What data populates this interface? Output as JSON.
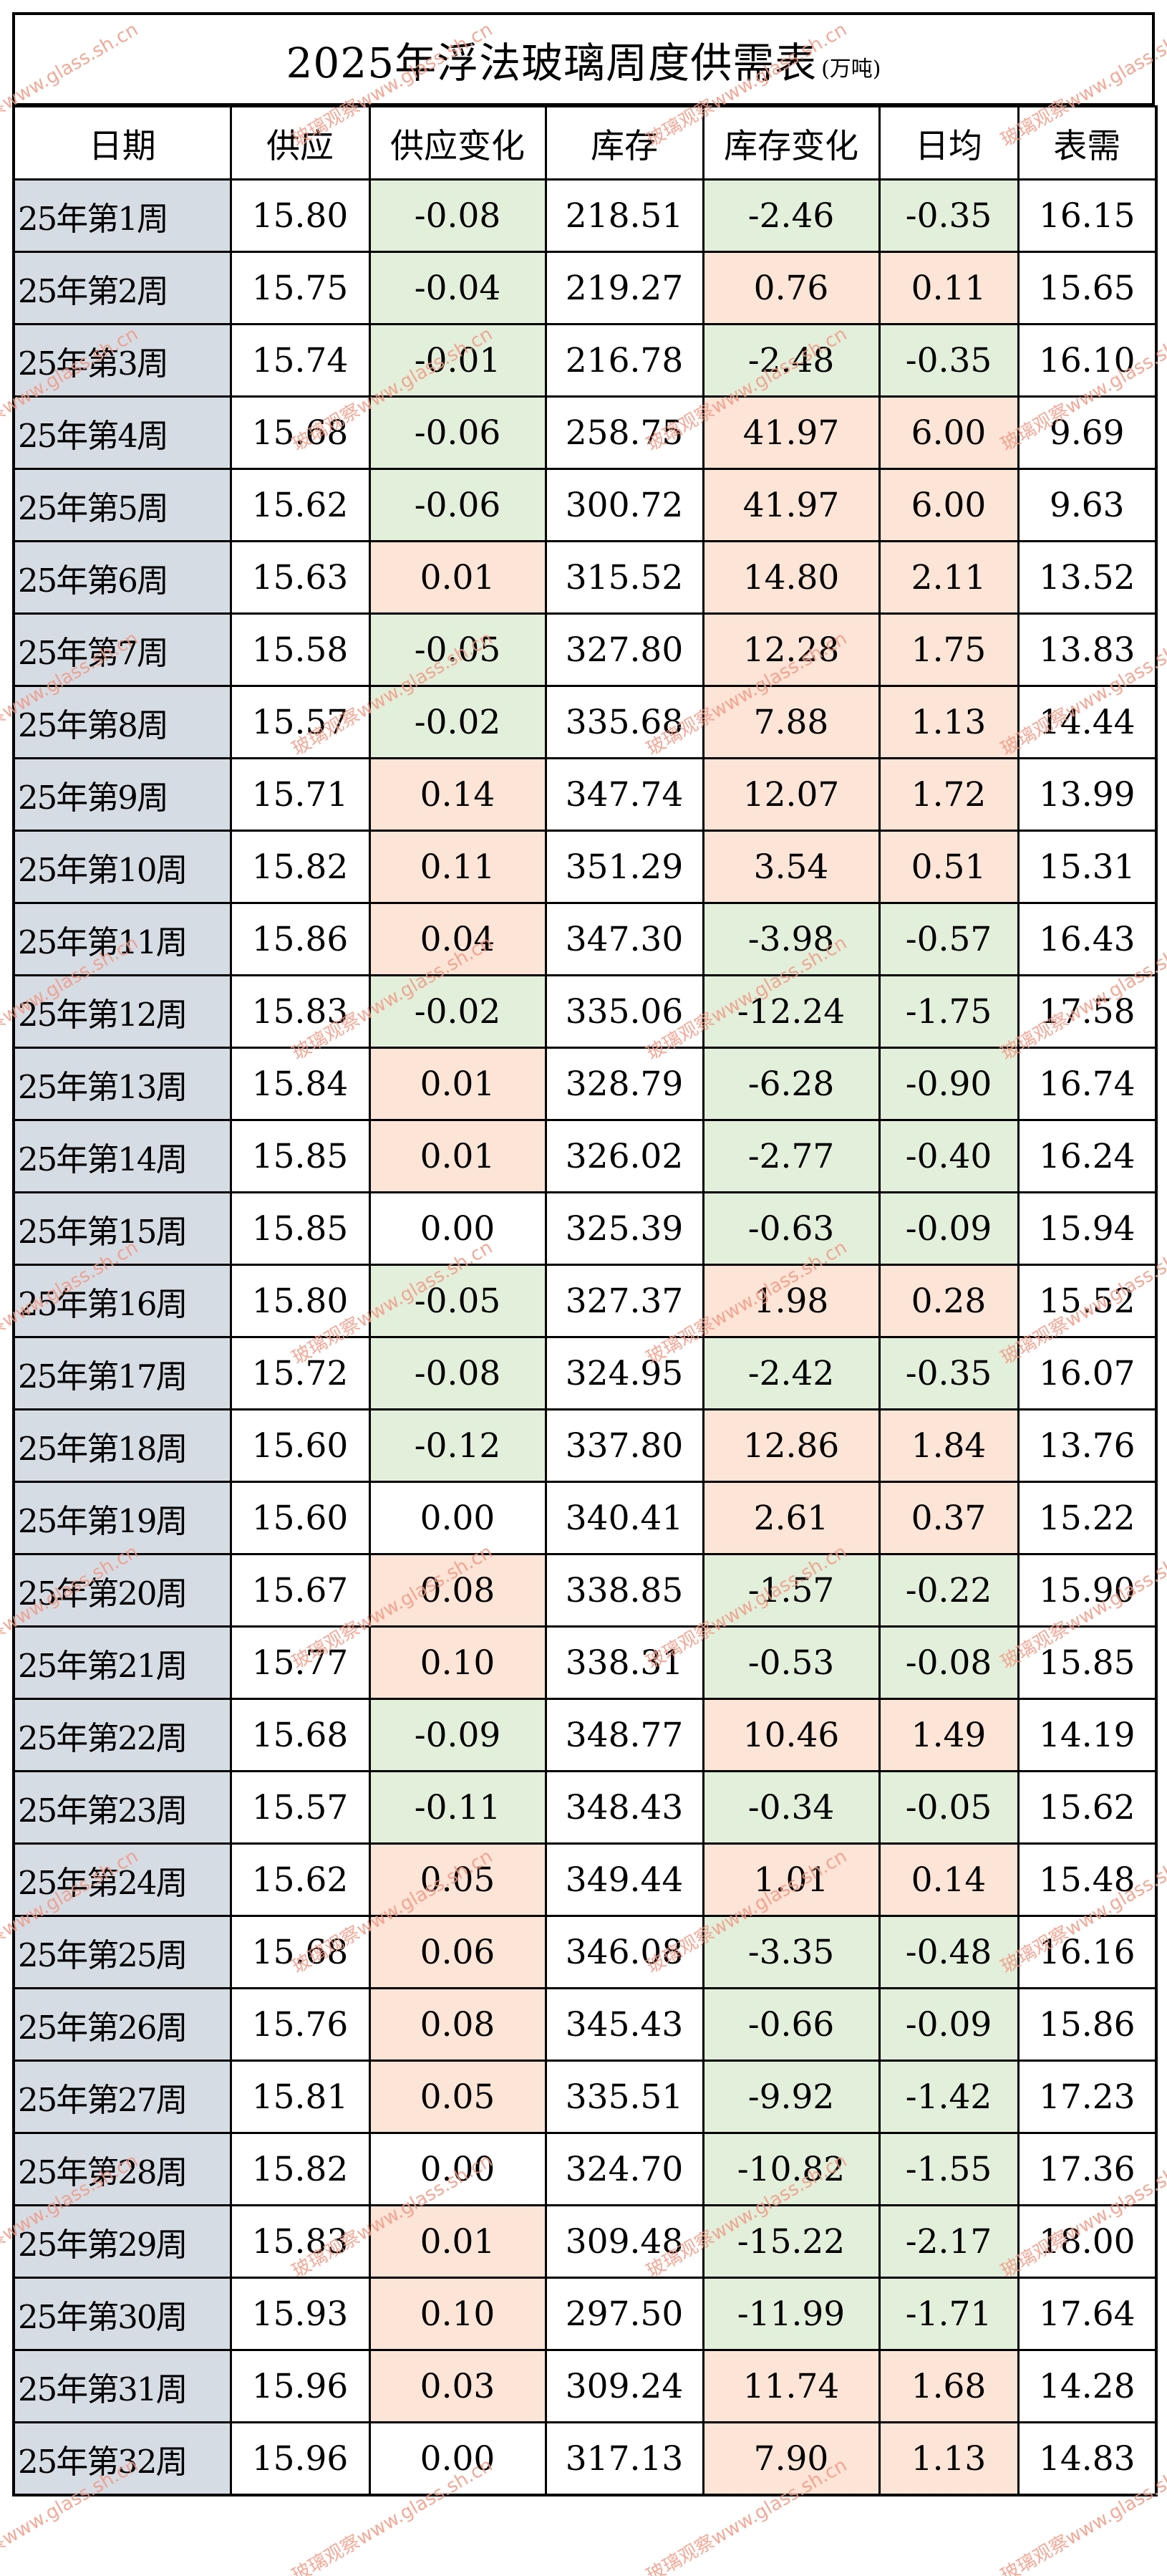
{
  "title": {
    "main": "2025年浮法玻璃周度供需表",
    "unit": "(万吨)"
  },
  "columns": [
    "日期",
    "供应",
    "供应变化",
    "库存",
    "库存变化",
    "日均",
    "表需"
  ],
  "colors": {
    "date_bg": "#d6dce4",
    "positive_bg": "#fce4d6",
    "negative_bg": "#e2efda",
    "border": "#000000",
    "watermark": "#f19a86"
  },
  "watermark_text": "玻璃观察www.glass.sh.cn",
  "rows": [
    {
      "date": "25年第1周",
      "supply": "15.80",
      "supply_change": "-0.08",
      "inventory": "218.51",
      "inventory_change": "-2.46",
      "daily": "-0.35",
      "demand": "16.15"
    },
    {
      "date": "25年第2周",
      "supply": "15.75",
      "supply_change": "-0.04",
      "inventory": "219.27",
      "inventory_change": "0.76",
      "daily": "0.11",
      "demand": "15.65"
    },
    {
      "date": "25年第3周",
      "supply": "15.74",
      "supply_change": "-0.01",
      "inventory": "216.78",
      "inventory_change": "-2.48",
      "daily": "-0.35",
      "demand": "16.10"
    },
    {
      "date": "25年第4周",
      "supply": "15.68",
      "supply_change": "-0.06",
      "inventory": "258.75",
      "inventory_change": "41.97",
      "daily": "6.00",
      "demand": "9.69"
    },
    {
      "date": "25年第5周",
      "supply": "15.62",
      "supply_change": "-0.06",
      "inventory": "300.72",
      "inventory_change": "41.97",
      "daily": "6.00",
      "demand": "9.63"
    },
    {
      "date": "25年第6周",
      "supply": "15.63",
      "supply_change": "0.01",
      "inventory": "315.52",
      "inventory_change": "14.80",
      "daily": "2.11",
      "demand": "13.52"
    },
    {
      "date": "25年第7周",
      "supply": "15.58",
      "supply_change": "-0.05",
      "inventory": "327.80",
      "inventory_change": "12.28",
      "daily": "1.75",
      "demand": "13.83"
    },
    {
      "date": "25年第8周",
      "supply": "15.57",
      "supply_change": "-0.02",
      "inventory": "335.68",
      "inventory_change": "7.88",
      "daily": "1.13",
      "demand": "14.44"
    },
    {
      "date": "25年第9周",
      "supply": "15.71",
      "supply_change": "0.14",
      "inventory": "347.74",
      "inventory_change": "12.07",
      "daily": "1.72",
      "demand": "13.99"
    },
    {
      "date": "25年第10周",
      "supply": "15.82",
      "supply_change": "0.11",
      "inventory": "351.29",
      "inventory_change": "3.54",
      "daily": "0.51",
      "demand": "15.31"
    },
    {
      "date": "25年第11周",
      "supply": "15.86",
      "supply_change": "0.04",
      "inventory": "347.30",
      "inventory_change": "-3.98",
      "daily": "-0.57",
      "demand": "16.43"
    },
    {
      "date": "25年第12周",
      "supply": "15.83",
      "supply_change": "-0.02",
      "inventory": "335.06",
      "inventory_change": "-12.24",
      "daily": "-1.75",
      "demand": "17.58"
    },
    {
      "date": "25年第13周",
      "supply": "15.84",
      "supply_change": "0.01",
      "inventory": "328.79",
      "inventory_change": "-6.28",
      "daily": "-0.90",
      "demand": "16.74"
    },
    {
      "date": "25年第14周",
      "supply": "15.85",
      "supply_change": "0.01",
      "inventory": "326.02",
      "inventory_change": "-2.77",
      "daily": "-0.40",
      "demand": "16.24"
    },
    {
      "date": "25年第15周",
      "supply": "15.85",
      "supply_change": "0.00",
      "inventory": "325.39",
      "inventory_change": "-0.63",
      "daily": "-0.09",
      "demand": "15.94"
    },
    {
      "date": "25年第16周",
      "supply": "15.80",
      "supply_change": "-0.05",
      "inventory": "327.37",
      "inventory_change": "1.98",
      "daily": "0.28",
      "demand": "15.52"
    },
    {
      "date": "25年第17周",
      "supply": "15.72",
      "supply_change": "-0.08",
      "inventory": "324.95",
      "inventory_change": "-2.42",
      "daily": "-0.35",
      "demand": "16.07"
    },
    {
      "date": "25年第18周",
      "supply": "15.60",
      "supply_change": "-0.12",
      "inventory": "337.80",
      "inventory_change": "12.86",
      "daily": "1.84",
      "demand": "13.76"
    },
    {
      "date": "25年第19周",
      "supply": "15.60",
      "supply_change": "0.00",
      "inventory": "340.41",
      "inventory_change": "2.61",
      "daily": "0.37",
      "demand": "15.22"
    },
    {
      "date": "25年第20周",
      "supply": "15.67",
      "supply_change": "0.08",
      "inventory": "338.85",
      "inventory_change": "-1.57",
      "daily": "-0.22",
      "demand": "15.90"
    },
    {
      "date": "25年第21周",
      "supply": "15.77",
      "supply_change": "0.10",
      "inventory": "338.31",
      "inventory_change": "-0.53",
      "daily": "-0.08",
      "demand": "15.85"
    },
    {
      "date": "25年第22周",
      "supply": "15.68",
      "supply_change": "-0.09",
      "inventory": "348.77",
      "inventory_change": "10.46",
      "daily": "1.49",
      "demand": "14.19"
    },
    {
      "date": "25年第23周",
      "supply": "15.57",
      "supply_change": "-0.11",
      "inventory": "348.43",
      "inventory_change": "-0.34",
      "daily": "-0.05",
      "demand": "15.62"
    },
    {
      "date": "25年第24周",
      "supply": "15.62",
      "supply_change": "0.05",
      "inventory": "349.44",
      "inventory_change": "1.01",
      "daily": "0.14",
      "demand": "15.48"
    },
    {
      "date": "25年第25周",
      "supply": "15.68",
      "supply_change": "0.06",
      "inventory": "346.08",
      "inventory_change": "-3.35",
      "daily": "-0.48",
      "demand": "16.16"
    },
    {
      "date": "25年第26周",
      "supply": "15.76",
      "supply_change": "0.08",
      "inventory": "345.43",
      "inventory_change": "-0.66",
      "daily": "-0.09",
      "demand": "15.86"
    },
    {
      "date": "25年第27周",
      "supply": "15.81",
      "supply_change": "0.05",
      "inventory": "335.51",
      "inventory_change": "-9.92",
      "daily": "-1.42",
      "demand": "17.23"
    },
    {
      "date": "25年第28周",
      "supply": "15.82",
      "supply_change": "0.00",
      "inventory": "324.70",
      "inventory_change": "-10.82",
      "daily": "-1.55",
      "demand": "17.36"
    },
    {
      "date": "25年第29周",
      "supply": "15.83",
      "supply_change": "0.01",
      "inventory": "309.48",
      "inventory_change": "-15.22",
      "daily": "-2.17",
      "demand": "18.00"
    },
    {
      "date": "25年第30周",
      "supply": "15.93",
      "supply_change": "0.10",
      "inventory": "297.50",
      "inventory_change": "-11.99",
      "daily": "-1.71",
      "demand": "17.64"
    },
    {
      "date": "25年第31周",
      "supply": "15.96",
      "supply_change": "0.03",
      "inventory": "309.24",
      "inventory_change": "11.74",
      "daily": "1.68",
      "demand": "14.28"
    },
    {
      "date": "25年第32周",
      "supply": "15.96",
      "supply_change": "0.00",
      "inventory": "317.13",
      "inventory_change": "7.90",
      "daily": "1.13",
      "demand": "14.83"
    }
  ]
}
